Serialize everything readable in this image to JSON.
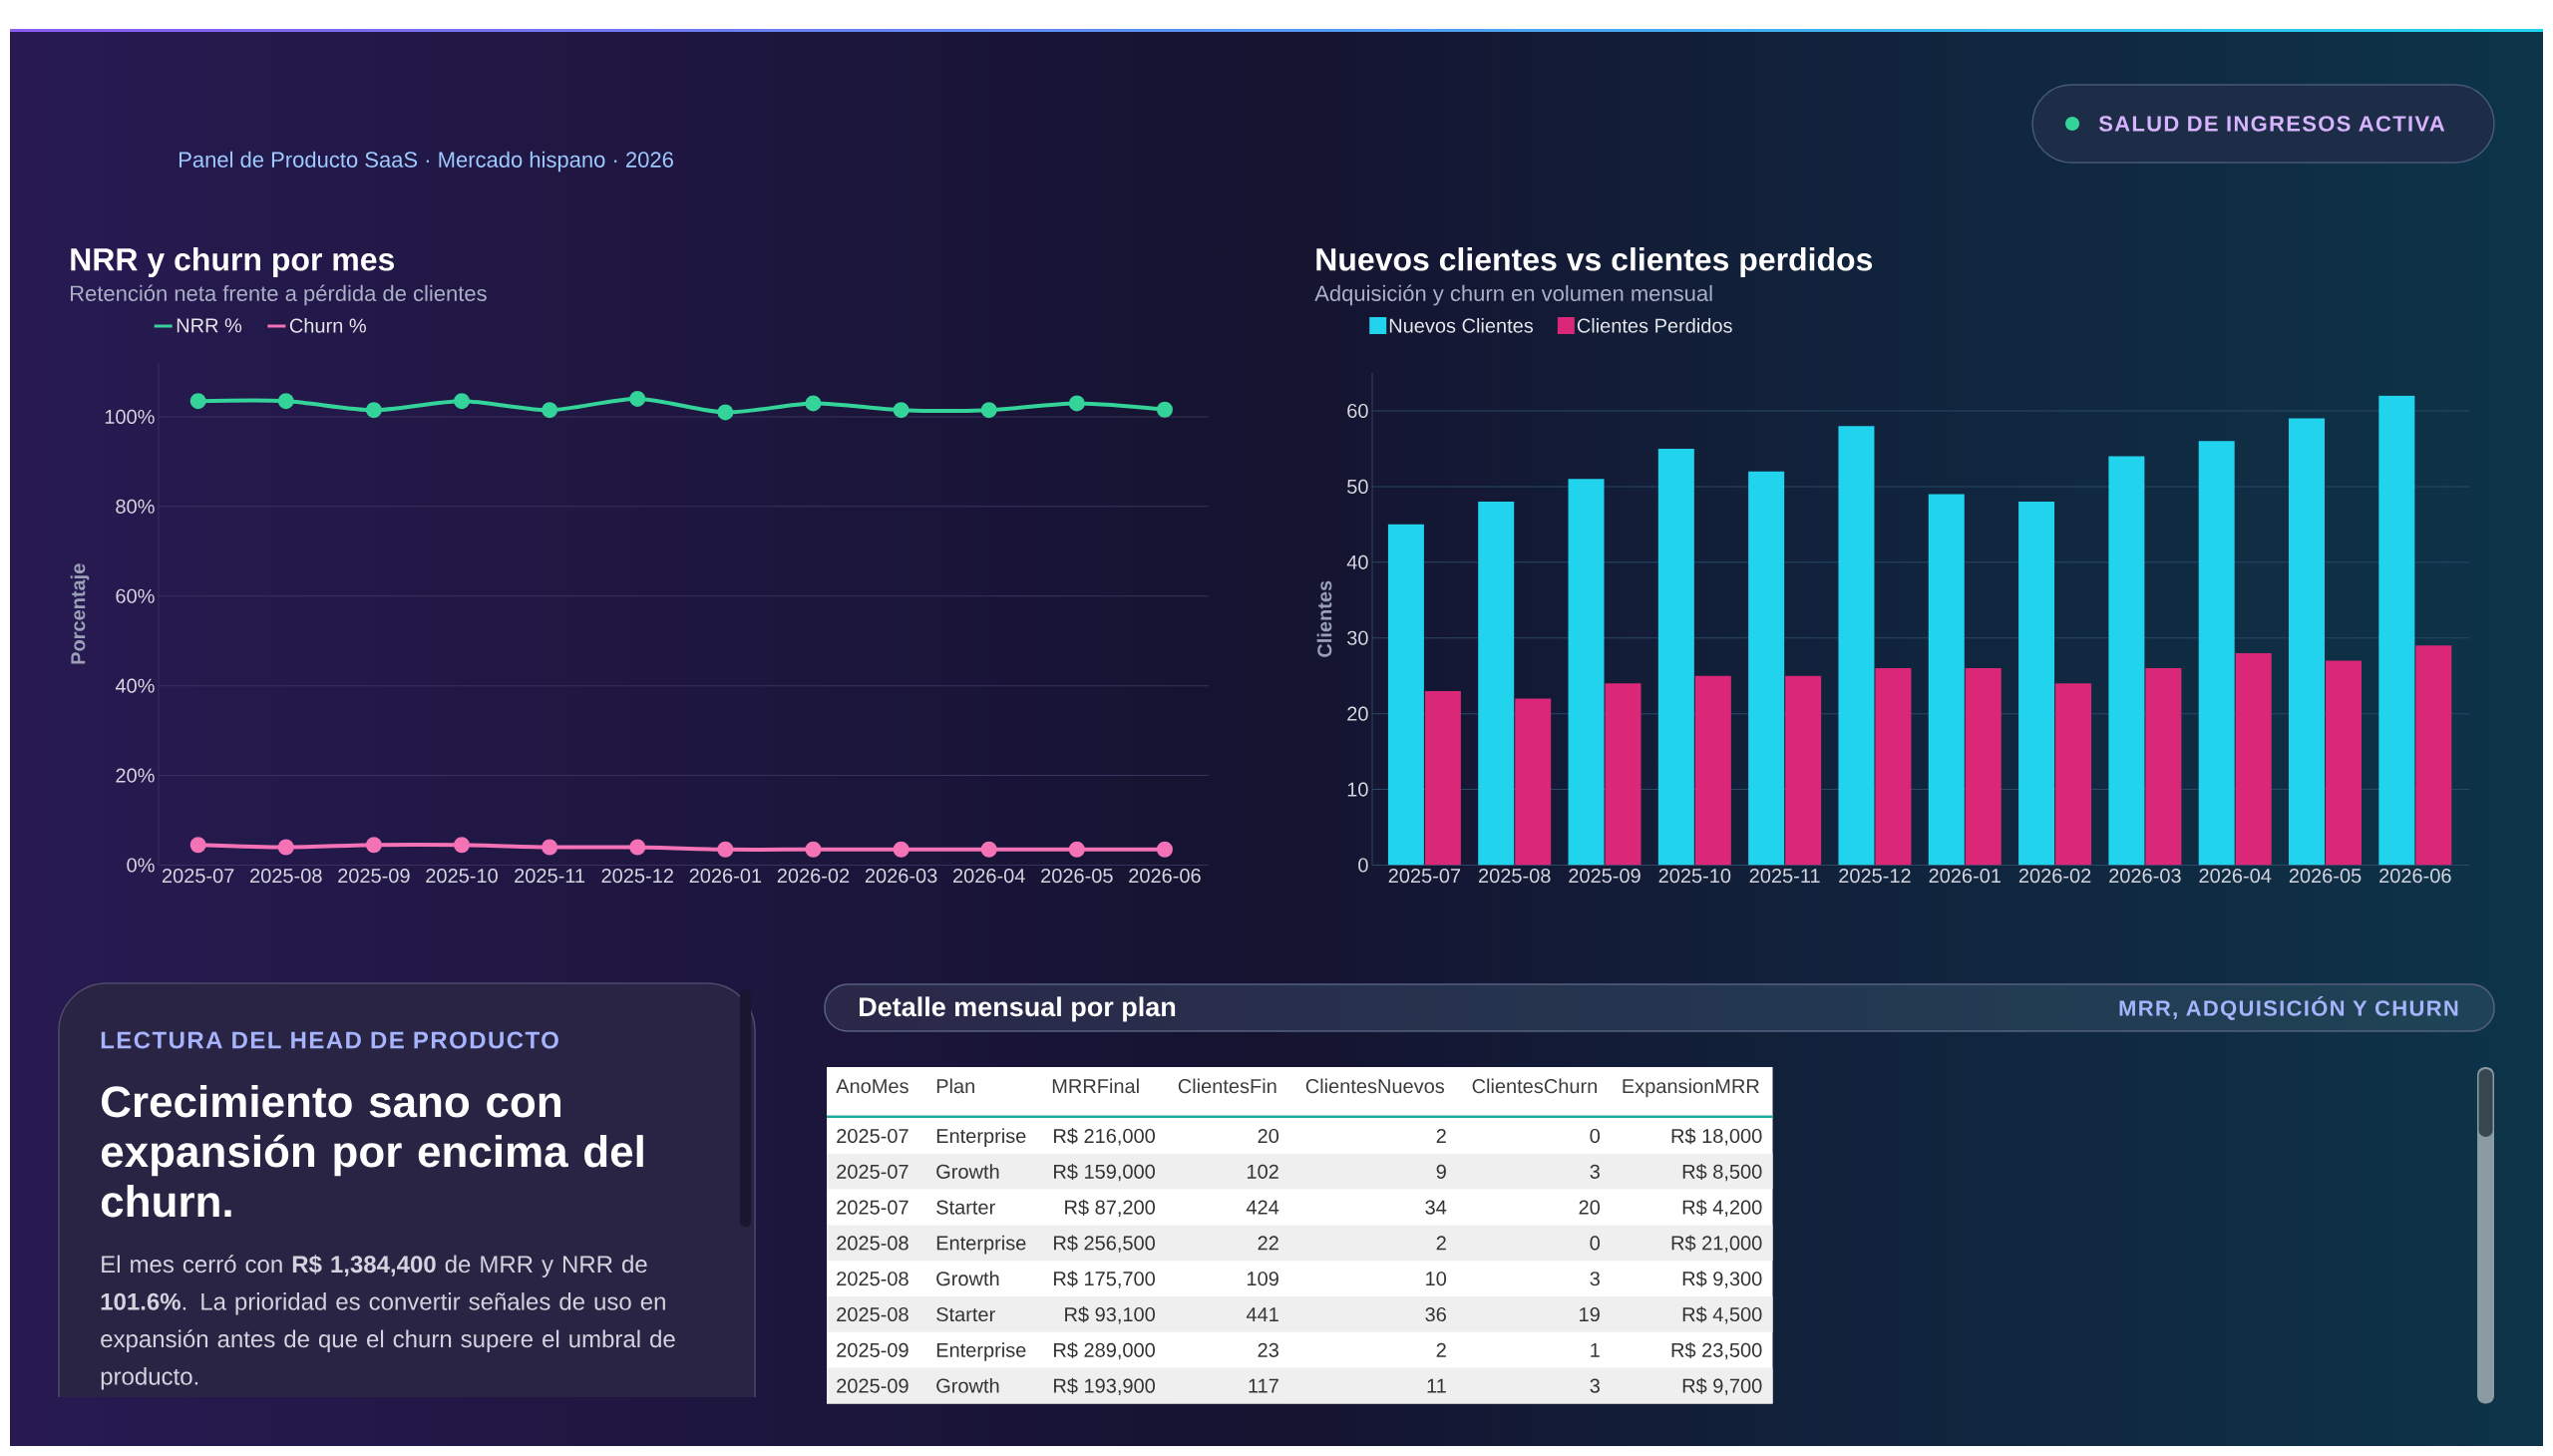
{
  "chart_data": [
    {
      "type": "other",
      "subtitle": "Panel de Producto SaaS · Mercado hispano · 2026",
      "annotations": [
        "SALUD DE INGRESOS ACTIVA"
      ]
    },
    {
      "type": "line",
      "title": "NRR y churn por mes",
      "subtitle": "Retención neta frente a pérdida de clientes",
      "ylabel": "Porcentaje",
      "categories": [
        "2025-07",
        "2025-08",
        "2025-09",
        "2025-10",
        "2025-11",
        "2025-12",
        "2026-01",
        "2026-02",
        "2026-03",
        "2026-04",
        "2026-05",
        "2026-06"
      ],
      "series": [
        {
          "name": "NRR %",
          "color": "#34d399",
          "values": [
            103.5,
            103.5,
            101.5,
            103.5,
            101.5,
            104,
            101,
            103,
            101.5,
            101.5,
            103,
            101.6
          ]
        },
        {
          "name": "Churn %",
          "color": "#f472b6",
          "values": [
            4.5,
            4,
            4.5,
            4.5,
            4,
            4,
            3.5,
            3.5,
            3.5,
            3.5,
            3.5,
            3.5
          ]
        }
      ],
      "ylim": [
        0,
        112
      ],
      "yticks": [
        {
          "value": 0,
          "label": "0%"
        },
        {
          "value": 20,
          "label": "20%"
        },
        {
          "value": 40,
          "label": "40%"
        },
        {
          "value": 60,
          "label": "60%"
        },
        {
          "value": 80,
          "label": "80%"
        },
        {
          "value": 100,
          "label": "100%"
        }
      ],
      "grid": "y",
      "legend": "top left",
      "marker": "circle",
      "line_style": "solid"
    },
    {
      "type": "bar",
      "title": "Nuevos clientes vs clientes perdidos",
      "subtitle": "Adquisición y churn en volumen mensual",
      "ylabel": "Clientes",
      "categories": [
        "2025-07",
        "2025-08",
        "2025-09",
        "2025-10",
        "2025-11",
        "2025-12",
        "2026-01",
        "2026-02",
        "2026-03",
        "2026-04",
        "2026-05",
        "2026-06"
      ],
      "series": [
        {
          "name": "Nuevos Clientes",
          "color": "#22d3ee",
          "values": [
            45,
            48,
            51,
            55,
            52,
            58,
            49,
            48,
            54,
            56,
            59,
            62
          ]
        },
        {
          "name": "Clientes Perdidos",
          "color": "#db2777",
          "values": [
            23,
            22,
            24,
            25,
            25,
            26,
            26,
            24,
            26,
            28,
            27,
            29
          ]
        }
      ],
      "ylim": [
        0,
        65
      ],
      "yticks": [
        0,
        10,
        20,
        30,
        40,
        50,
        60
      ],
      "grid": "y",
      "legend": "top left"
    },
    {
      "type": "other",
      "title": "LECTURA DEL HEAD DE PRODUCTO",
      "subtitle": "Crecimiento sano con expansión por encima del churn.",
      "annotations": [
        "El mes cerró con **R$ 1,384,400** de MRR y NRR de **101.6%**. La prioridad es convertir señales de uso en expansión antes de que el churn supere el umbral de producto."
      ]
    },
    {
      "type": "other",
      "title": "Detalle mensual por plan",
      "subtitle": "MRR, ADQUISICIÓN Y CHURN",
      "categories": [
        "AnoMes",
        "Plan",
        "MRRFinal",
        "ClientesFin",
        "ClientesNuevos",
        "ClientesChurn",
        "ExpansionMRR"
      ],
      "annotations": [
        "2025-07",
        "Enterprise",
        "R$ 216,000",
        "20",
        "2",
        "0",
        "R$ 18,000",
        "2025-07",
        "Growth",
        "R$ 159,000",
        "102",
        "9",
        "3",
        "R$ 8,500",
        "2025-07",
        "Starter",
        "R$ 87,200",
        "424",
        "34",
        "20",
        "R$ 4,200",
        "2025-08",
        "Enterprise",
        "R$ 256,500",
        "22",
        "2",
        "0",
        "R$ 21,000",
        "2025-08",
        "Growth",
        "R$ 175,700",
        "109",
        "10",
        "3",
        "R$ 9,300",
        "2025-08",
        "Starter",
        "R$ 93,100",
        "441",
        "36",
        "19",
        "R$ 4,500",
        "2025-09",
        "Enterprise",
        "R$ 289,000",
        "23",
        "2",
        "1",
        "R$ 23,500",
        "2025-09",
        "Growth",
        "R$ 193,900",
        "117",
        "11",
        "3",
        "R$ 9,700"
      ]
    }
  ]
}
